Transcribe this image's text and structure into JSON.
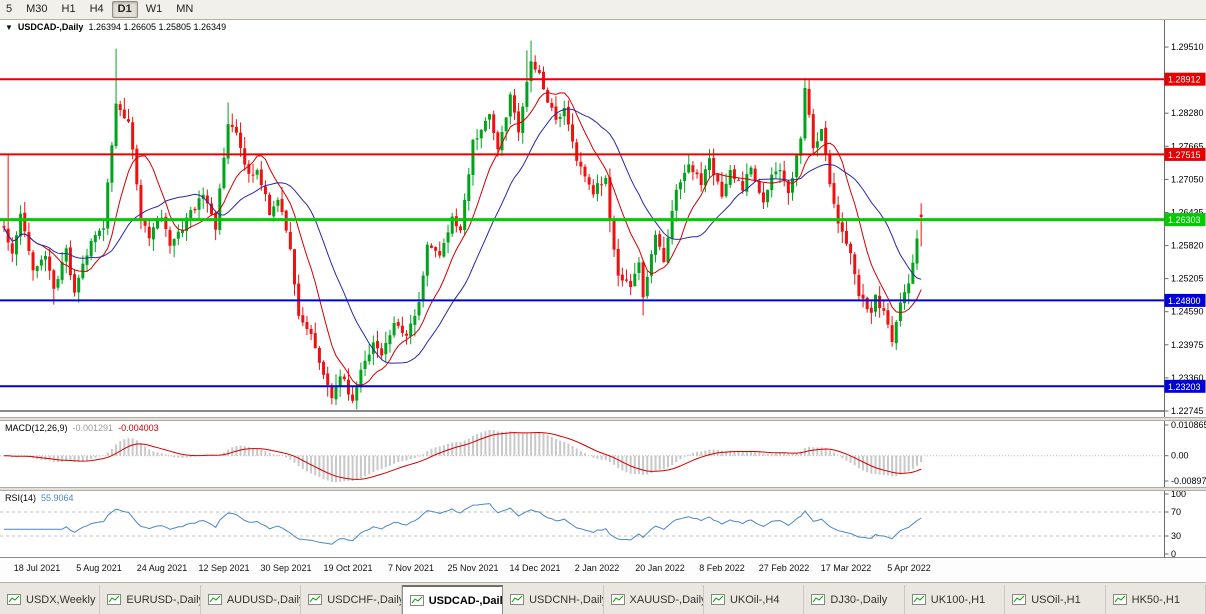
{
  "toolbar": {
    "timeframes": [
      {
        "label": "5",
        "active": false
      },
      {
        "label": "M30",
        "active": false
      },
      {
        "label": "H1",
        "active": false
      },
      {
        "label": "H4",
        "active": false
      },
      {
        "label": "D1",
        "active": true
      },
      {
        "label": "W1",
        "active": false
      },
      {
        "label": "MN",
        "active": false
      }
    ]
  },
  "icons": {
    "dropdown": "▼"
  },
  "chart_data": {
    "type": "candlestick",
    "symbol_label": "USDCAD-,Daily",
    "ohlc_label": {
      "open": "1.26394",
      "high": "1.26605",
      "low": "1.25805",
      "close": "1.26349",
      "text": "1.26394 1.26605 1.25805 1.26349"
    },
    "bull_color": "#00A41C",
    "bear_color": "#EF1010",
    "ylim": [
      1.22633,
      1.30013
    ],
    "y_ticks": [
      "1.29510",
      "1.28895",
      "1.28280",
      "1.27665",
      "1.27050",
      "1.26435",
      "1.25820",
      "1.25205",
      "1.24590",
      "1.23975",
      "1.23360",
      "1.22745"
    ],
    "num_candles": 222,
    "price_path": [
      [
        0,
        1.2617
      ],
      [
        2,
        1.2571
      ],
      [
        4,
        1.2636
      ],
      [
        7,
        1.2533
      ],
      [
        10,
        1.256
      ],
      [
        12,
        1.2504
      ],
      [
        15,
        1.257
      ],
      [
        17,
        1.2495
      ],
      [
        21,
        1.2588
      ],
      [
        24,
        1.2616
      ],
      [
        27,
        1.285
      ],
      [
        30,
        1.2813
      ],
      [
        33,
        1.2635
      ],
      [
        35,
        1.2598
      ],
      [
        38,
        1.2636
      ],
      [
        40,
        1.2588
      ],
      [
        43,
        1.2616
      ],
      [
        46,
        1.2654
      ],
      [
        48,
        1.2682
      ],
      [
        51,
        1.2616
      ],
      [
        54,
        1.2813
      ],
      [
        56,
        1.2785
      ],
      [
        59,
        1.271
      ],
      [
        61,
        1.2729
      ],
      [
        64,
        1.2644
      ],
      [
        66,
        1.2672
      ],
      [
        69,
        1.257
      ],
      [
        71,
        1.2457
      ],
      [
        74,
        1.242
      ],
      [
        76,
        1.2364
      ],
      [
        79,
        1.2298
      ],
      [
        81,
        1.2345
      ],
      [
        84,
        1.2292
      ],
      [
        86,
        1.2345
      ],
      [
        89,
        1.2401
      ],
      [
        91,
        1.2382
      ],
      [
        94,
        1.2438
      ],
      [
        97,
        1.241
      ],
      [
        100,
        1.2476
      ],
      [
        102,
        1.2589
      ],
      [
        105,
        1.2561
      ],
      [
        108,
        1.2636
      ],
      [
        110,
        1.2608
      ],
      [
        113,
        1.2777
      ],
      [
        117,
        1.2823
      ],
      [
        119,
        1.2758
      ],
      [
        122,
        1.2861
      ],
      [
        124,
        1.2795
      ],
      [
        127,
        1.2926
      ],
      [
        129,
        1.2898
      ],
      [
        132,
        1.2832
      ],
      [
        133,
        1.2813
      ],
      [
        135,
        1.2841
      ],
      [
        138,
        1.2738
      ],
      [
        140,
        1.271
      ],
      [
        142,
        1.2682
      ],
      [
        145,
        1.271
      ],
      [
        146,
        1.2626
      ],
      [
        148,
        1.2532
      ],
      [
        151,
        1.2504
      ],
      [
        153,
        1.2551
      ],
      [
        154,
        1.2485
      ],
      [
        157,
        1.2598
      ],
      [
        159,
        1.2551
      ],
      [
        162,
        1.2692
      ],
      [
        165,
        1.2729
      ],
      [
        168,
        1.2701
      ],
      [
        170,
        1.2738
      ],
      [
        173,
        1.2673
      ],
      [
        175,
        1.2719
      ],
      [
        178,
        1.2691
      ],
      [
        180,
        1.2729
      ],
      [
        183,
        1.2663
      ],
      [
        185,
        1.271
      ],
      [
        187,
        1.2729
      ],
      [
        189,
        1.2682
      ],
      [
        192,
        1.2776
      ],
      [
        193,
        1.2879
      ],
      [
        195,
        1.2757
      ],
      [
        197,
        1.2795
      ],
      [
        199,
        1.27
      ],
      [
        201,
        1.2626
      ],
      [
        204,
        1.257
      ],
      [
        206,
        1.2495
      ],
      [
        209,
        1.2457
      ],
      [
        210,
        1.2485
      ],
      [
        213,
        1.2438
      ],
      [
        214,
        1.24
      ],
      [
        216,
        1.2476
      ],
      [
        218,
        1.2514
      ],
      [
        220,
        1.2598
      ],
      [
        221,
        1.26349
      ]
    ],
    "wick_overrides": [
      {
        "i": 1,
        "high": 1.275
      },
      {
        "i": 12,
        "low": 1.2472
      },
      {
        "i": 27,
        "high": 1.2948
      },
      {
        "i": 54,
        "high": 1.2848
      },
      {
        "i": 79,
        "low": 1.2287
      },
      {
        "i": 84,
        "low": 1.2289
      },
      {
        "i": 126,
        "high": 1.2945
      },
      {
        "i": 127,
        "high": 1.2963
      },
      {
        "i": 154,
        "low": 1.2452
      },
      {
        "i": 193,
        "high": 1.2893
      },
      {
        "i": 214,
        "low": 1.2394
      }
    ],
    "forced_last_candle": {
      "o": 1.26394,
      "h": 1.26605,
      "l": 1.25805,
      "c": 1.26349
    },
    "levels": [
      {
        "price": 1.28912,
        "color": "#E60000",
        "label": "1.28912",
        "width": 2
      },
      {
        "price": 1.27515,
        "color": "#E60000",
        "label": "1.27515",
        "width": 2
      },
      {
        "price": 1.26303,
        "color": "#00CC00",
        "label": "1.26303",
        "width": 3
      },
      {
        "price": 1.248,
        "color": "#0000D9",
        "label": "1.24800",
        "width": 2
      },
      {
        "price": 1.23203,
        "color": "#0000D9",
        "label": "1.23203",
        "width": 2
      },
      {
        "price": 1.22745,
        "color": "#141414",
        "label": null,
        "width": 1
      }
    ],
    "moving_averages": [
      {
        "period": 10,
        "color": "#D40000"
      },
      {
        "period": 22,
        "color": "#2828A8"
      }
    ],
    "x_ticks": {
      "labels": [
        "18 Jul 2021",
        "5 Aug 2021",
        "24 Aug 2021",
        "12 Sep 2021",
        "30 Sep 2021",
        "19 Oct 2021",
        "7 Nov 2021",
        "25 Nov 2021",
        "14 Dec 2021",
        "2 Jan 2022",
        "20 Jan 2022",
        "8 Feb 2022",
        "27 Feb 2022",
        "17 Mar 2022",
        "5 Apr 2022"
      ],
      "indices": [
        8,
        23,
        38,
        53,
        68,
        83,
        98,
        113,
        128,
        143,
        158,
        173,
        188,
        203,
        218
      ]
    },
    "macd": {
      "label": "MACD(12,26,9)",
      "value_main": "-0.001291",
      "value_signal": "-0.004003",
      "fast": 12,
      "slow": 26,
      "signal": 9,
      "ylim": [
        -0.0111,
        0.01228
      ],
      "scale": [
        {
          "v": 0.010865,
          "text": "0.010865"
        },
        {
          "v": 0,
          "text": "0.00"
        },
        {
          "v": -0.008975,
          "text": "-0.008975"
        }
      ],
      "hist_color": "#C8C8C8",
      "signal_color": "#D40000"
    },
    "rsi": {
      "label": "RSI(14)",
      "value": "55.9064",
      "period": 14,
      "line_color": "#4A86C8",
      "ylim": [
        -5,
        105
      ],
      "levels": [
        {
          "v": 100,
          "text": "100",
          "dashed": false
        },
        {
          "v": 70,
          "text": "70",
          "dashed": true
        },
        {
          "v": 30,
          "text": "30",
          "dashed": true
        },
        {
          "v": 0,
          "text": "0",
          "dashed": false
        }
      ]
    }
  },
  "tabs": {
    "items": [
      {
        "label": "USDX,Weekly",
        "active": false
      },
      {
        "label": "EURUSD-,Daily",
        "active": false
      },
      {
        "label": "AUDUSD-,Daily",
        "active": false
      },
      {
        "label": "USDCHF-,Daily",
        "active": false
      },
      {
        "label": "USDCAD-,Daily",
        "active": true
      },
      {
        "label": "USDCNH-,Daily",
        "active": false
      },
      {
        "label": "XAUUSD-,Daily",
        "active": false
      },
      {
        "label": "UKOil-,H4",
        "active": false
      },
      {
        "label": "DJ30-,Daily",
        "active": false
      },
      {
        "label": "UK100-,H1",
        "active": false
      },
      {
        "label": "USOil-,H1",
        "active": false
      },
      {
        "label": "HK50-,H1",
        "active": false
      }
    ]
  }
}
